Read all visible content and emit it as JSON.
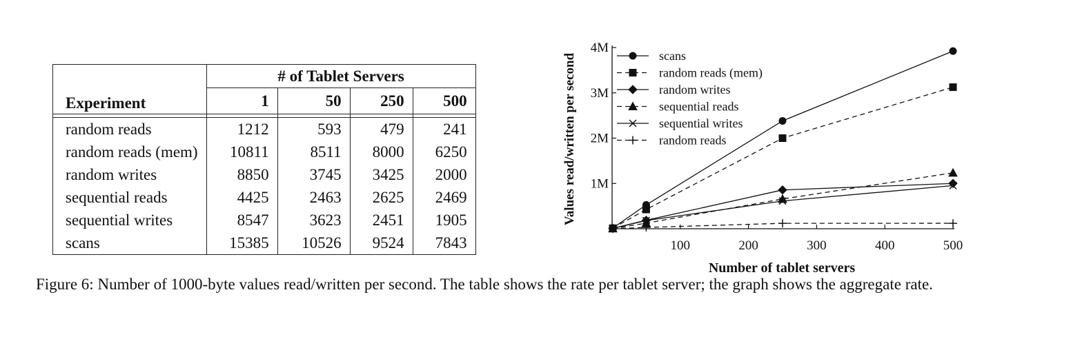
{
  "table": {
    "group_header": "# of Tablet Servers",
    "experiment_header": "Experiment",
    "columns": [
      "1",
      "50",
      "250",
      "500"
    ],
    "rows": [
      {
        "label": "random reads",
        "values": [
          "1212",
          "593",
          "479",
          "241"
        ]
      },
      {
        "label": "random reads (mem)",
        "values": [
          "10811",
          "8511",
          "8000",
          "6250"
        ]
      },
      {
        "label": "random writes",
        "values": [
          "8850",
          "3745",
          "3425",
          "2000"
        ]
      },
      {
        "label": "sequential reads",
        "values": [
          "4425",
          "2463",
          "2625",
          "2469"
        ]
      },
      {
        "label": "sequential writes",
        "values": [
          "8547",
          "3623",
          "2451",
          "1905"
        ]
      },
      {
        "label": "scans",
        "values": [
          "15385",
          "10526",
          "9524",
          "7843"
        ]
      }
    ]
  },
  "chart_data": {
    "type": "line",
    "xlabel": "Number of tablet servers",
    "ylabel": "Values read/written per second",
    "xlim": [
      0,
      500
    ],
    "ylim": [
      0,
      4000000
    ],
    "xticks": [
      100,
      200,
      300,
      400,
      500
    ],
    "yticks": [
      {
        "value": 1000000,
        "label": "1M"
      },
      {
        "value": 2000000,
        "label": "2M"
      },
      {
        "value": 3000000,
        "label": "3M"
      },
      {
        "value": 4000000,
        "label": "4M"
      }
    ],
    "legend_position": "top-left",
    "x": [
      1,
      50,
      250,
      500
    ],
    "series": [
      {
        "name": "scans",
        "dash": "solid",
        "marker": "circle",
        "values": [
          15385,
          526300,
          2381000,
          3921500
        ]
      },
      {
        "name": "random reads (mem)",
        "dash": "dashed",
        "marker": "square",
        "values": [
          10811,
          425550,
          2000000,
          3125000
        ]
      },
      {
        "name": "random writes",
        "dash": "solid",
        "marker": "diamond",
        "values": [
          8850,
          187250,
          856250,
          1000000
        ]
      },
      {
        "name": "sequential reads",
        "dash": "dashed",
        "marker": "triangle",
        "values": [
          4425,
          123150,
          656250,
          1234500
        ]
      },
      {
        "name": "sequential writes",
        "dash": "solid",
        "marker": "x",
        "values": [
          8547,
          181150,
          612750,
          952500
        ]
      },
      {
        "name": "random reads",
        "dash": "dashed",
        "marker": "plus",
        "values": [
          1212,
          29650,
          119750,
          120500
        ]
      }
    ]
  },
  "caption": {
    "label": "Figure 6:",
    "text": "Number of 1000-byte values read/written per second.  The table shows the rate per tablet server; the graph shows the aggregate rate."
  }
}
